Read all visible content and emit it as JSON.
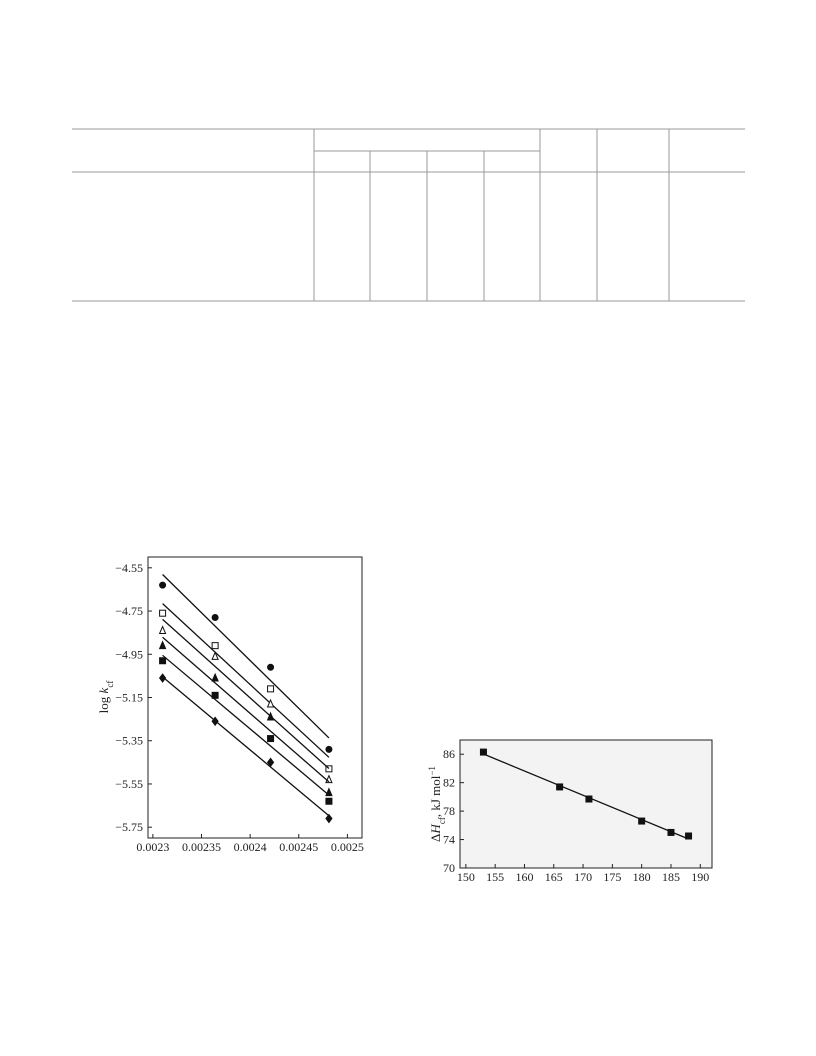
{
  "chart_data": [
    {
      "type": "scatter",
      "ylabel": [
        "log ",
        "k",
        "cf"
      ],
      "ylabel_format": [
        "normal",
        "italic",
        "sub"
      ],
      "xlim": [
        0.002295,
        0.002515
      ],
      "ylim": [
        -5.8,
        -4.5
      ],
      "xticks": [
        0.0023,
        0.00235,
        0.0024,
        0.00245,
        0.0025
      ],
      "yticks": [
        {
          "value": -4.55,
          "label": "−4.55"
        },
        {
          "value": -4.75,
          "label": "−4.75"
        },
        {
          "value": -4.95,
          "label": "−4.95"
        },
        {
          "value": -5.15,
          "label": "−5.15"
        },
        {
          "value": -5.35,
          "label": "−5.35"
        },
        {
          "value": -5.55,
          "label": "−5.55"
        },
        {
          "value": -5.75,
          "label": "−5.75"
        }
      ],
      "fit_line": true,
      "background": "#ffffff",
      "x": [
        0.00231,
        0.002364,
        0.002421,
        0.002481
      ],
      "series": [
        {
          "marker": "circle-filled",
          "color": "#111111",
          "values": [
            -4.63,
            -4.78,
            -5.01,
            -5.39
          ]
        },
        {
          "marker": "square-open",
          "color": "#111111",
          "values": [
            -4.76,
            -4.91,
            -5.11,
            -5.48
          ]
        },
        {
          "marker": "triangle-open",
          "color": "#111111",
          "values": [
            -4.84,
            -4.96,
            -5.18,
            -5.53
          ]
        },
        {
          "marker": "triangle-filled",
          "color": "#111111",
          "values": [
            -4.91,
            -5.06,
            -5.24,
            -5.59
          ]
        },
        {
          "marker": "square-filled",
          "color": "#111111",
          "values": [
            -4.98,
            -5.14,
            -5.34,
            -5.63
          ]
        },
        {
          "marker": "diamond-filled",
          "color": "#111111",
          "values": [
            -5.06,
            -5.26,
            -5.45,
            -5.71
          ]
        }
      ]
    },
    {
      "type": "scatter",
      "ylabel": [
        "Δ",
        "H",
        "cf",
        ", kJ mol",
        "−1"
      ],
      "ylabel_format": [
        "normal",
        "italic",
        "sub",
        "normal",
        "sup"
      ],
      "xlim": [
        149,
        192
      ],
      "ylim": [
        70,
        88
      ],
      "xticks": [
        150,
        155,
        160,
        165,
        170,
        175,
        180,
        185,
        190
      ],
      "yticks": [
        70,
        74,
        78,
        82,
        86
      ],
      "fit_line": true,
      "background": "#f3f3f3",
      "x": [
        153,
        166,
        171,
        180,
        185,
        188
      ],
      "series": [
        {
          "marker": "square-filled",
          "color": "#111111",
          "values": [
            86.3,
            81.4,
            79.7,
            76.6,
            75.0,
            74.5
          ]
        }
      ]
    }
  ]
}
